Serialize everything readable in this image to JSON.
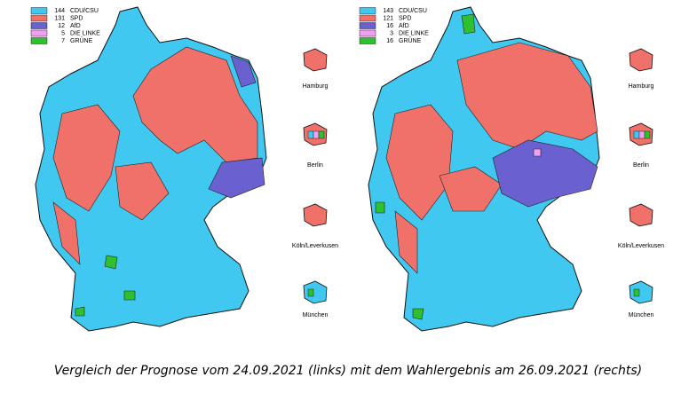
{
  "parties": [
    {
      "name": "CDU/CSU",
      "color": "#40c8f0"
    },
    {
      "name": "SPD",
      "color": "#f0706a"
    },
    {
      "name": "AfD",
      "color": "#6a60d0"
    },
    {
      "name": "DIE LINKE",
      "color": "#f0a0f0"
    },
    {
      "name": "GRÜNE",
      "color": "#2ec02e"
    }
  ],
  "maps": [
    {
      "counts": [
        144,
        131,
        12,
        5,
        7
      ]
    },
    {
      "counts": [
        143,
        121,
        16,
        3,
        16
      ]
    }
  ],
  "cities": [
    "Hamburg",
    "Berlin",
    "Köln/Leverkusen",
    "München"
  ],
  "caption": "Vergleich der Prognose vom 24.09.2021 (links) mit dem Wahlergebnis am 26.09.2021 (rechts)"
}
